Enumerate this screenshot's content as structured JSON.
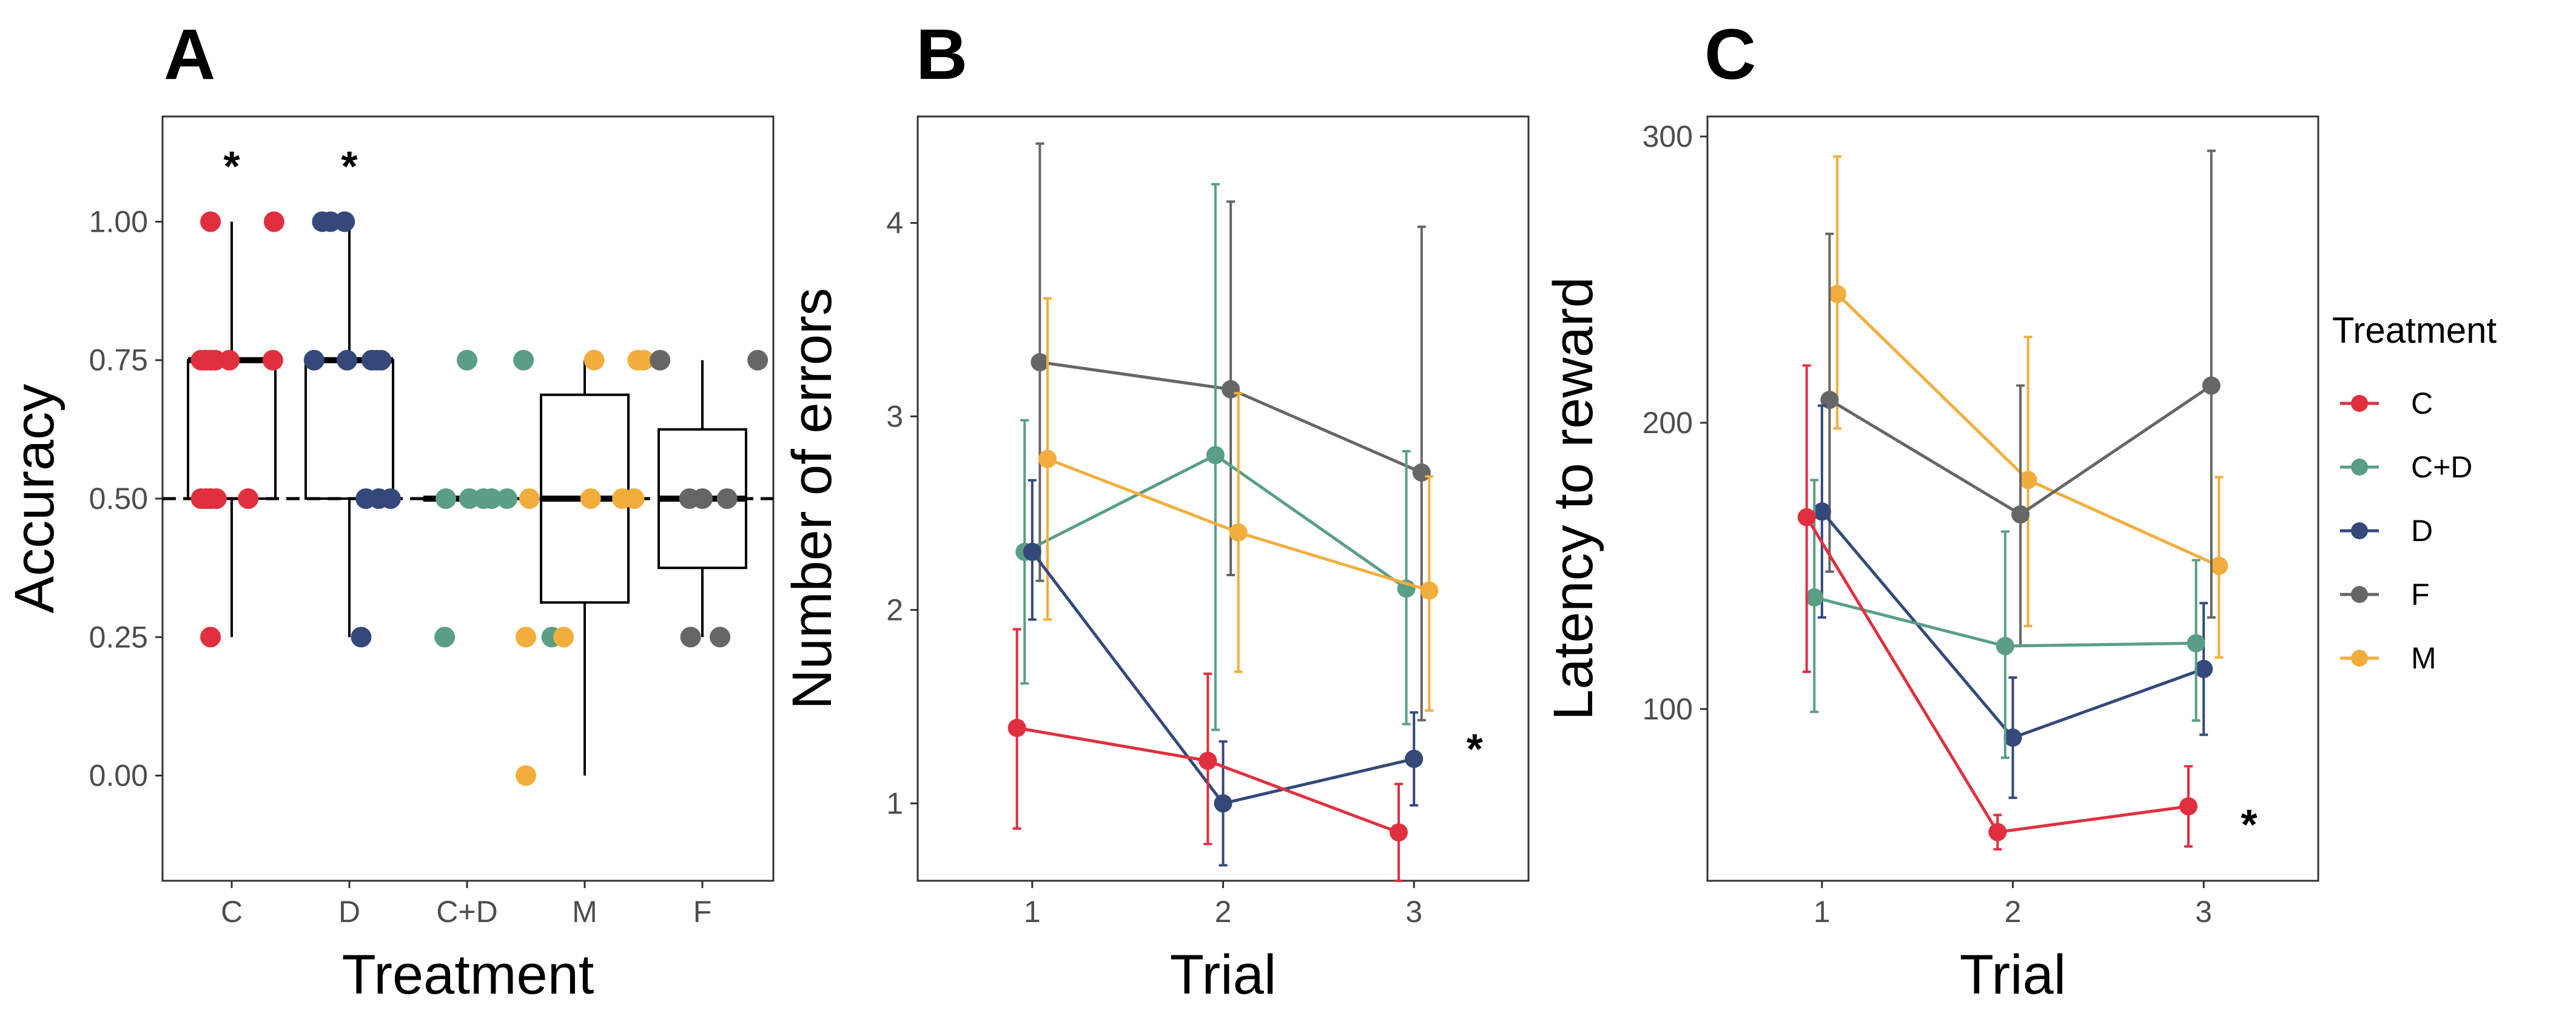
{
  "colors": {
    "C": "#E0303F",
    "C+D": "#5A9E86",
    "D": "#34497A",
    "F": "#666666",
    "M": "#F2AE3D",
    "frame": "#333333",
    "tick": "#4d4d4d"
  },
  "legend": {
    "title": "Treatment",
    "items": [
      "C",
      "C+D",
      "D",
      "F",
      "M"
    ]
  },
  "chart_data": [
    {
      "panel": "A",
      "type": "boxplot",
      "xlabel": "Treatment",
      "ylabel": "Accuracy",
      "categories": [
        "C",
        "D",
        "C+D",
        "M",
        "F"
      ],
      "ylim": [
        -0.19,
        1.19
      ],
      "yticks": [
        0.0,
        0.25,
        0.5,
        0.75,
        1.0
      ],
      "ytick_labels": [
        "0.00",
        "0.25",
        "0.50",
        "0.75",
        "1.00"
      ],
      "reference_line": 0.5,
      "significance": [
        "C",
        "D"
      ],
      "star": "*",
      "boxes": [
        {
          "group": "C",
          "min": 0.25,
          "q1": 0.5,
          "median": 0.75,
          "q3": 0.75,
          "max": 1.0
        },
        {
          "group": "D",
          "min": 0.25,
          "q1": 0.5,
          "median": 0.75,
          "q3": 0.75,
          "max": 1.0
        },
        {
          "group": "C+D",
          "min": 0.5,
          "q1": 0.5,
          "median": 0.5,
          "q3": 0.5,
          "max": 0.5
        },
        {
          "group": "M",
          "min": 0.0,
          "q1": 0.3125,
          "median": 0.5,
          "q3": 0.6875,
          "max": 0.75
        },
        {
          "group": "F",
          "min": 0.25,
          "q1": 0.375,
          "median": 0.5,
          "q3": 0.625,
          "max": 0.75
        }
      ],
      "points": [
        {
          "group": "C",
          "jitter": -0.18,
          "y": 1.0
        },
        {
          "group": "C",
          "jitter": -0.26,
          "y": 0.75
        },
        {
          "group": "C",
          "jitter": -0.22,
          "y": 0.75
        },
        {
          "group": "C",
          "jitter": -0.18,
          "y": 0.75
        },
        {
          "group": "C",
          "jitter": -0.14,
          "y": 0.75
        },
        {
          "group": "C",
          "jitter": -0.02,
          "y": 0.75
        },
        {
          "group": "C",
          "jitter": -0.26,
          "y": 0.5
        },
        {
          "group": "C",
          "jitter": -0.22,
          "y": 0.5
        },
        {
          "group": "C",
          "jitter": -0.18,
          "y": 0.5
        },
        {
          "group": "C",
          "jitter": -0.13,
          "y": 0.5
        },
        {
          "group": "C",
          "jitter": 0.14,
          "y": 0.5
        },
        {
          "group": "C",
          "jitter": -0.18,
          "y": 0.25
        },
        {
          "group": "C",
          "jitter": 0.35,
          "y": 0.75
        },
        {
          "group": "C",
          "jitter": 0.36,
          "y": 1.0
        },
        {
          "group": "D",
          "jitter": -0.3,
          "y": 0.75
        },
        {
          "group": "D",
          "jitter": -0.04,
          "y": 1.0
        },
        {
          "group": "D",
          "jitter": -0.23,
          "y": 1.0
        },
        {
          "group": "D",
          "jitter": -0.16,
          "y": 1.0
        },
        {
          "group": "D",
          "jitter": -0.02,
          "y": 0.75
        },
        {
          "group": "D",
          "jitter": 0.19,
          "y": 0.75
        },
        {
          "group": "D",
          "jitter": 0.23,
          "y": 0.75
        },
        {
          "group": "D",
          "jitter": 0.27,
          "y": 0.75
        },
        {
          "group": "D",
          "jitter": 0.14,
          "y": 0.5
        },
        {
          "group": "D",
          "jitter": 0.25,
          "y": 0.5
        },
        {
          "group": "D",
          "jitter": 0.35,
          "y": 0.5
        },
        {
          "group": "D",
          "jitter": 0.1,
          "y": 0.25
        },
        {
          "group": "C+D",
          "jitter": -0.18,
          "y": 0.5
        },
        {
          "group": "C+D",
          "jitter": 0.02,
          "y": 0.5
        },
        {
          "group": "C+D",
          "jitter": 0.14,
          "y": 0.5
        },
        {
          "group": "C+D",
          "jitter": 0.21,
          "y": 0.5
        },
        {
          "group": "C+D",
          "jitter": 0.34,
          "y": 0.5
        },
        {
          "group": "C+D",
          "jitter": -0.19,
          "y": 0.25
        },
        {
          "group": "C+D",
          "jitter": 0.0,
          "y": 0.75
        },
        {
          "group": "C+D",
          "jitter": 0.48,
          "y": 0.75
        },
        {
          "group": "C+D",
          "jitter": 0.72,
          "y": 0.25
        },
        {
          "group": "M",
          "jitter": 0.08,
          "y": 0.75
        },
        {
          "group": "M",
          "jitter": 0.45,
          "y": 0.75
        },
        {
          "group": "M",
          "jitter": 0.5,
          "y": 0.75
        },
        {
          "group": "M",
          "jitter": -0.47,
          "y": 0.5
        },
        {
          "group": "M",
          "jitter": 0.05,
          "y": 0.5
        },
        {
          "group": "M",
          "jitter": 0.32,
          "y": 0.5
        },
        {
          "group": "M",
          "jitter": 0.42,
          "y": 0.5
        },
        {
          "group": "M",
          "jitter": -0.5,
          "y": 0.25
        },
        {
          "group": "M",
          "jitter": -0.18,
          "y": 0.25
        },
        {
          "group": "M",
          "jitter": -0.5,
          "y": 0.0
        },
        {
          "group": "F",
          "jitter": -0.36,
          "y": 0.75
        },
        {
          "group": "F",
          "jitter": 0.47,
          "y": 0.75
        },
        {
          "group": "F",
          "jitter": -0.11,
          "y": 0.5
        },
        {
          "group": "F",
          "jitter": 0.0,
          "y": 0.5
        },
        {
          "group": "F",
          "jitter": 0.21,
          "y": 0.5
        },
        {
          "group": "F",
          "jitter": -0.1,
          "y": 0.25
        },
        {
          "group": "F",
          "jitter": 0.15,
          "y": 0.25
        }
      ]
    },
    {
      "panel": "B",
      "type": "line",
      "xlabel": "Trial",
      "ylabel": "Number of errors",
      "x": [
        1,
        2,
        3
      ],
      "xticks": [
        "1",
        "2",
        "3"
      ],
      "ylim": [
        0.6,
        4.55
      ],
      "xlim": [
        0.4,
        3.6
      ],
      "yticks": [
        1,
        2,
        3,
        4
      ],
      "significance_star": {
        "series": "D",
        "trial": 3,
        "y": 1.3,
        "label": "*"
      },
      "series": [
        {
          "name": "F",
          "offset": 0.04,
          "values": [
            3.28,
            3.14,
            2.71
          ],
          "lower": [
            2.15,
            2.18,
            1.43
          ],
          "upper": [
            4.41,
            4.11,
            3.98
          ]
        },
        {
          "name": "C+D",
          "offset": -0.04,
          "values": [
            2.3,
            2.8,
            2.11
          ],
          "lower": [
            1.62,
            1.38,
            1.41
          ],
          "upper": [
            2.98,
            4.2,
            2.82
          ]
        },
        {
          "name": "M",
          "offset": 0.08,
          "values": [
            2.78,
            2.4,
            2.1
          ],
          "lower": [
            1.95,
            1.68,
            1.48
          ],
          "upper": [
            3.61,
            3.12,
            2.69
          ]
        },
        {
          "name": "D",
          "offset": 0.0,
          "values": [
            2.3,
            1.0,
            1.23
          ],
          "lower": [
            1.95,
            0.68,
            0.99
          ],
          "upper": [
            2.67,
            1.32,
            1.47
          ]
        },
        {
          "name": "C",
          "offset": -0.08,
          "values": [
            1.39,
            1.22,
            0.85
          ],
          "lower": [
            0.87,
            0.79,
            0.6
          ],
          "upper": [
            1.9,
            1.67,
            1.1
          ]
        }
      ]
    },
    {
      "panel": "C",
      "type": "line",
      "xlabel": "Trial",
      "ylabel": "Latency to reward",
      "x": [
        1,
        2,
        3
      ],
      "xticks": [
        "1",
        "2",
        "3"
      ],
      "ylim": [
        40,
        307
      ],
      "xlim": [
        0.4,
        3.6
      ],
      "yticks": [
        100,
        200,
        300
      ],
      "significance_star": {
        "series": "C",
        "trial": 3,
        "y": 61,
        "label": "*"
      },
      "series": [
        {
          "name": "M",
          "offset": 0.08,
          "values": [
            245,
            180,
            150
          ],
          "lower": [
            198,
            129,
            118
          ],
          "upper": [
            293,
            230,
            181
          ]
        },
        {
          "name": "F",
          "offset": 0.04,
          "values": [
            208,
            168,
            213
          ],
          "lower": [
            148,
            122,
            132
          ],
          "upper": [
            266,
            213,
            295
          ]
        },
        {
          "name": "D",
          "offset": 0.0,
          "values": [
            169,
            90,
            114
          ],
          "lower": [
            132,
            69,
            91
          ],
          "upper": [
            206,
            111,
            137
          ]
        },
        {
          "name": "C+D",
          "offset": -0.04,
          "values": [
            139,
            122,
            123
          ],
          "lower": [
            99,
            83,
            96
          ],
          "upper": [
            180,
            162,
            152
          ]
        },
        {
          "name": "C",
          "offset": -0.08,
          "values": [
            167,
            57,
            66
          ],
          "lower": [
            113,
            51,
            52
          ],
          "upper": [
            220,
            63,
            80
          ]
        }
      ]
    }
  ]
}
